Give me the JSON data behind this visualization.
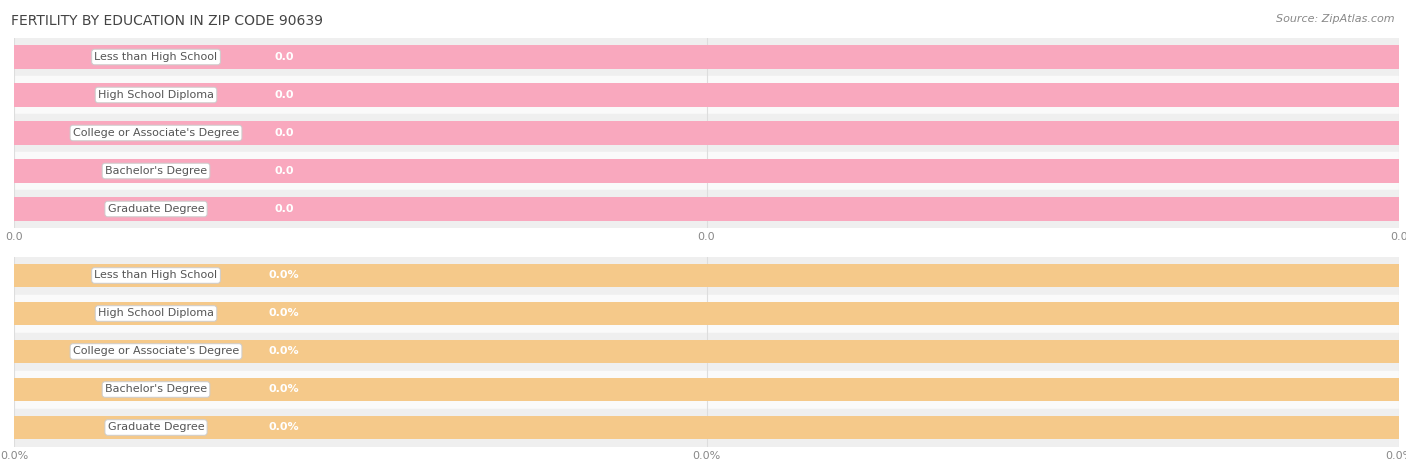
{
  "title": "FERTILITY BY EDUCATION IN ZIP CODE 90639",
  "source": "Source: ZipAtlas.com",
  "categories": [
    "Less than High School",
    "High School Diploma",
    "College or Associate's Degree",
    "Bachelor's Degree",
    "Graduate Degree"
  ],
  "top_values": [
    0.0,
    0.0,
    0.0,
    0.0,
    0.0
  ],
  "bottom_values": [
    0.0,
    0.0,
    0.0,
    0.0,
    0.0
  ],
  "top_bar_color": "#f9a8be",
  "top_bar_end_color": "#f48fa8",
  "bottom_bar_color": "#f5c98a",
  "bottom_bar_end_color": "#e8aa5a",
  "row_bg_odd": "#efefef",
  "row_bg_even": "#fafafa",
  "title_color": "#444444",
  "source_color": "#888888",
  "label_color": "#555555",
  "value_color": "#ffffff",
  "tick_color": "#888888",
  "grid_color": "#dddddd",
  "title_fontsize": 10,
  "label_fontsize": 8,
  "source_fontsize": 8,
  "tick_fontsize": 8,
  "bar_height": 0.62,
  "xlim": [
    0,
    1
  ]
}
